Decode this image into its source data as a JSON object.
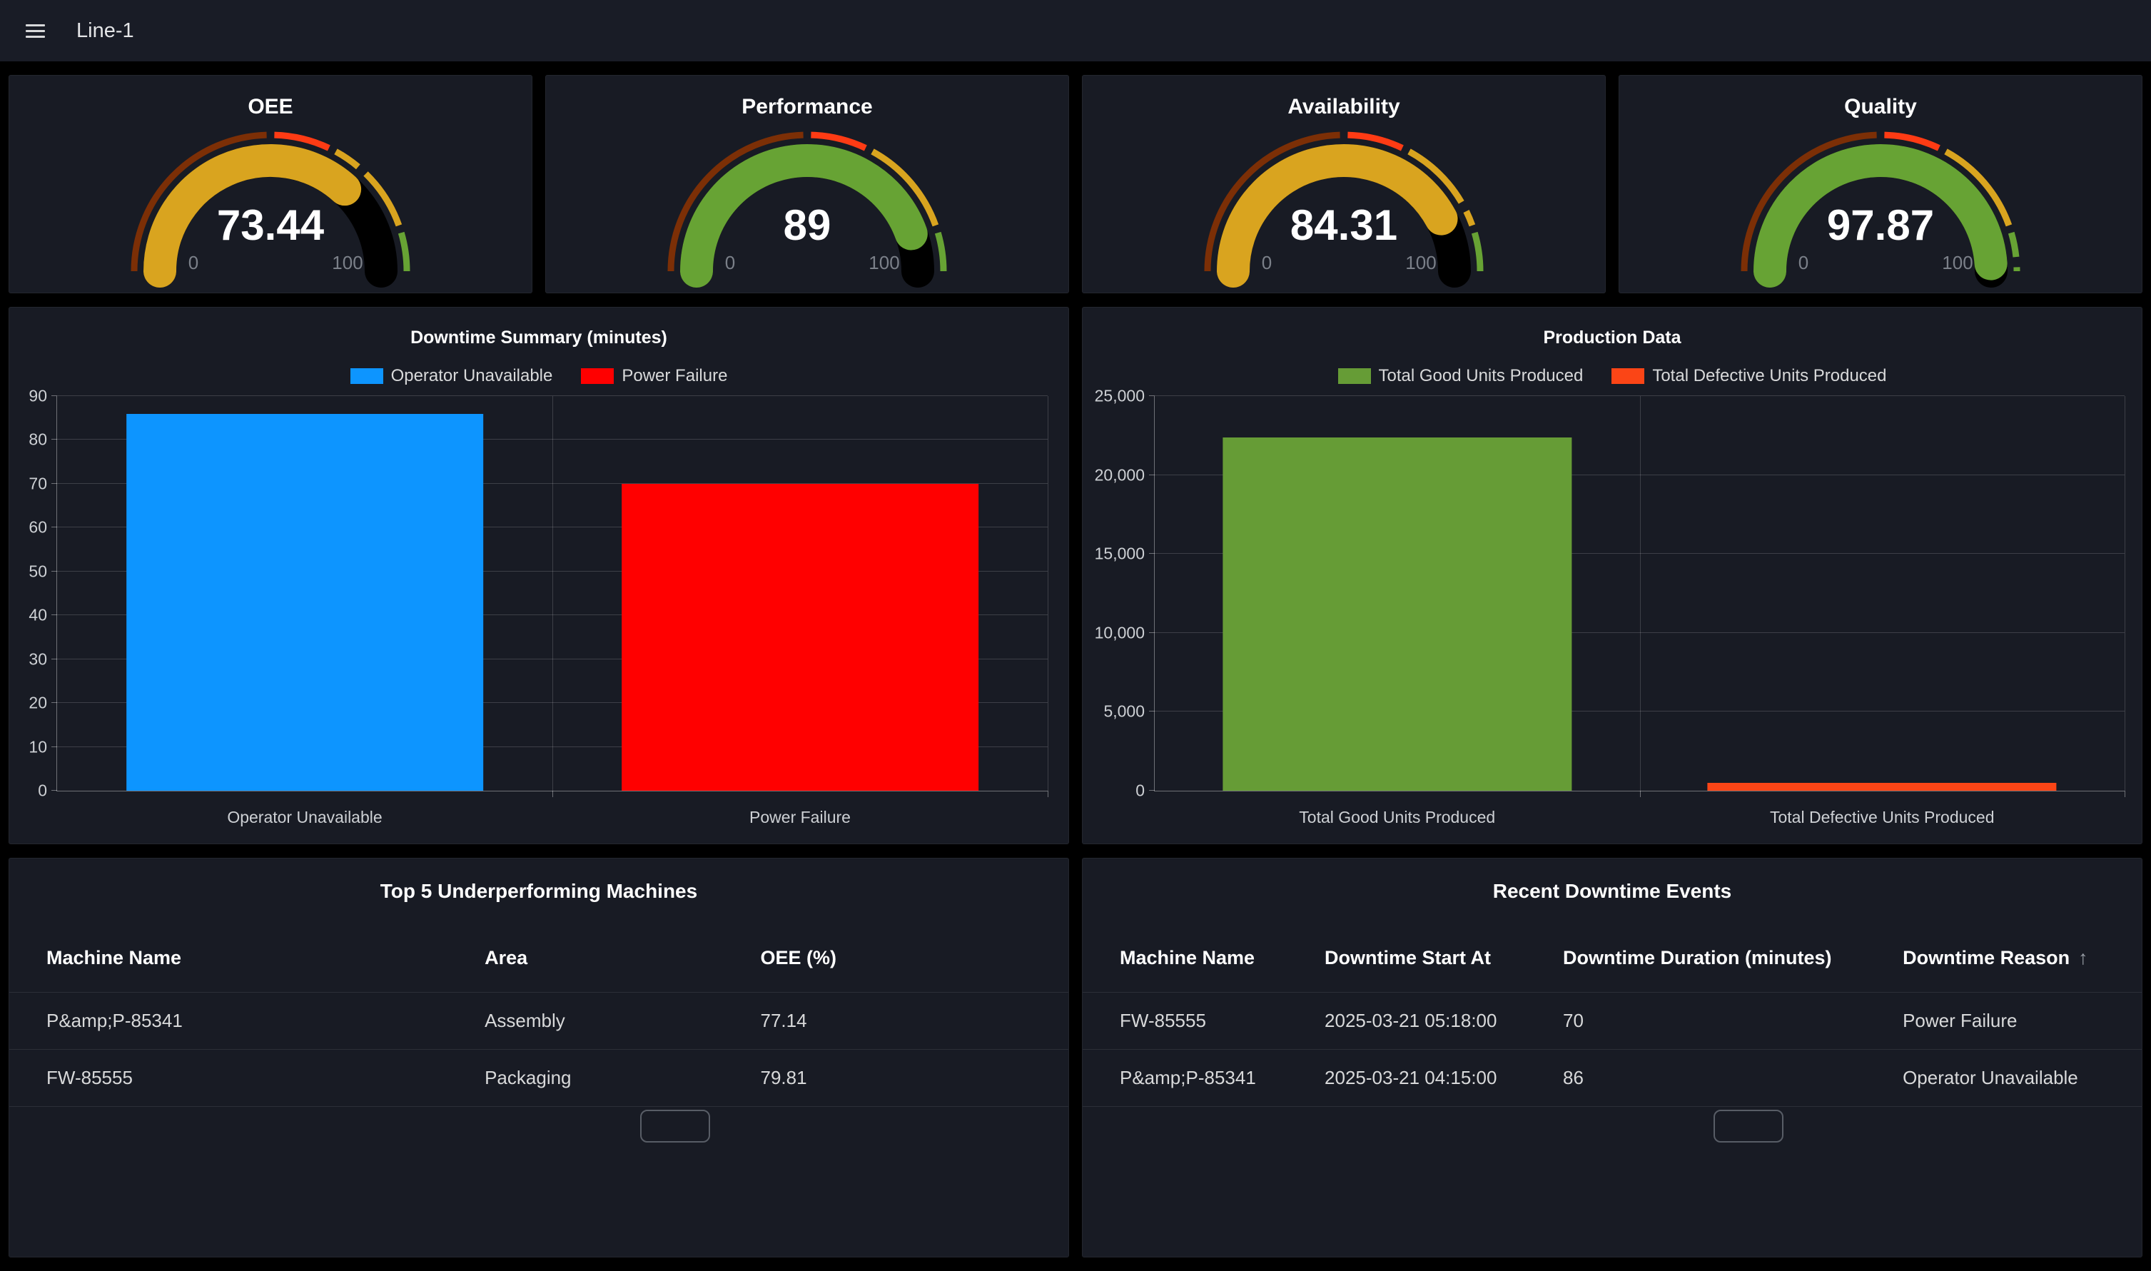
{
  "navbar": {
    "title": "Line-1"
  },
  "gauge_defaults": {
    "min": 0,
    "max": 100,
    "min_label": "0",
    "max_label": "100",
    "thresholds": [
      {
        "from": 0,
        "to": 50,
        "color": "#7c2f06"
      },
      {
        "from": 50,
        "to": 65,
        "color": "#ff3b14"
      },
      {
        "from": 65,
        "to": 90,
        "color": "#d9a41f"
      },
      {
        "from": 90,
        "to": 100,
        "color": "#67a334"
      }
    ],
    "remainder_color": "#000000"
  },
  "gauges": [
    {
      "title": "OEE",
      "value": 73.44,
      "display": "73.44",
      "color": "#d9a41f"
    },
    {
      "title": "Performance",
      "value": 89,
      "display": "89",
      "color": "#67a334"
    },
    {
      "title": "Availability",
      "value": 84.31,
      "display": "84.31",
      "color": "#d9a41f"
    },
    {
      "title": "Quality",
      "value": 97.87,
      "display": "97.87",
      "color": "#67a334"
    }
  ],
  "chart_data": [
    {
      "type": "bar",
      "title": "Downtime Summary (minutes)",
      "categories": [
        "Operator Unavailable",
        "Power Failure"
      ],
      "values": [
        86,
        70
      ],
      "bar_colors": [
        "#0d95ff",
        "#ff0000"
      ],
      "legend": [
        {
          "label": "Operator Unavailable",
          "color": "#0d95ff"
        },
        {
          "label": "Power Failure",
          "color": "#ff0000"
        }
      ],
      "legend_position": "top",
      "xlabel": "",
      "ylabel": "",
      "ylim": [
        0,
        90
      ],
      "yticks": [
        "0",
        "10",
        "20",
        "30",
        "40",
        "50",
        "60",
        "70",
        "80",
        "90"
      ],
      "grid": true
    },
    {
      "type": "bar",
      "title": "Production Data",
      "categories": [
        "Total Good Units Produced",
        "Total Defective Units Produced"
      ],
      "values": [
        22400,
        500
      ],
      "bar_colors": [
        "#669c36",
        "#fb4516"
      ],
      "legend": [
        {
          "label": "Total Good Units Produced",
          "color": "#669c36"
        },
        {
          "label": "Total Defective Units Produced",
          "color": "#fb4516"
        }
      ],
      "legend_position": "top",
      "xlabel": "",
      "ylabel": "",
      "ylim": [
        0,
        25000
      ],
      "yticks": [
        "0",
        "5,000",
        "10,000",
        "15,000",
        "20,000",
        "25,000"
      ],
      "grid": true
    }
  ],
  "tables": [
    {
      "title": "Top 5 Underperforming Machines",
      "columns": [
        {
          "label": "Machine Name",
          "sort": null
        },
        {
          "label": "Area",
          "sort": null
        },
        {
          "label": "OEE (%)",
          "sort": null
        }
      ],
      "rows": [
        [
          "P&amp;P-85341",
          "Assembly",
          "77.14"
        ],
        [
          "FW-85555",
          "Packaging",
          "79.81"
        ]
      ]
    },
    {
      "title": "Recent Downtime Events",
      "columns": [
        {
          "label": "Machine Name",
          "sort": null
        },
        {
          "label": "Downtime Start At",
          "sort": null
        },
        {
          "label": "Downtime Duration (minutes)",
          "sort": null
        },
        {
          "label": "Downtime Reason",
          "sort": "asc"
        }
      ],
      "rows": [
        [
          "FW-85555",
          "2025-03-21 05:18:00",
          "70",
          "Power Failure"
        ],
        [
          "P&amp;P-85341",
          "2025-03-21 04:15:00",
          "86",
          "Operator Unavailable"
        ]
      ]
    }
  ],
  "sort_ascending_glyph": "↑"
}
